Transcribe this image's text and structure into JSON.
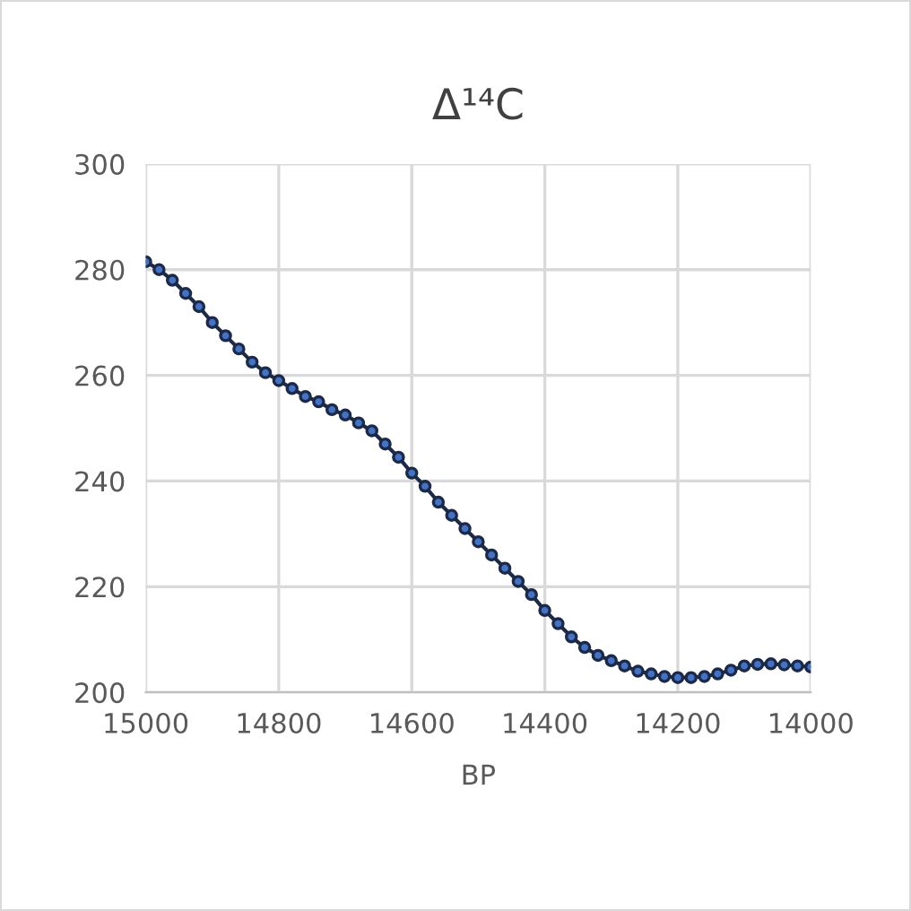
{
  "chart_data": {
    "type": "line",
    "title": "Δ¹⁴C",
    "xlabel": "BP",
    "xlim": [
      15000,
      14000
    ],
    "xticks": [
      15000,
      14800,
      14600,
      14400,
      14200,
      14000
    ],
    "ylim": [
      200,
      300
    ],
    "yticks": [
      200,
      220,
      240,
      260,
      280,
      300
    ],
    "grid": true,
    "marker": "circle",
    "line_style": "solid",
    "legend": false,
    "series": [
      {
        "color": "#1c2a48",
        "x": [
          15000,
          14980,
          14960,
          14940,
          14920,
          14900,
          14880,
          14860,
          14840,
          14820,
          14800,
          14780,
          14760,
          14740,
          14720,
          14700,
          14680,
          14660,
          14640,
          14620,
          14600,
          14580,
          14560,
          14540,
          14520,
          14500,
          14480,
          14460,
          14440,
          14420,
          14400,
          14380,
          14360,
          14340,
          14320,
          14300,
          14280,
          14260,
          14240,
          14220,
          14200,
          14180,
          14160,
          14140,
          14120,
          14100,
          14080,
          14060,
          14040,
          14020,
          14000
        ],
        "values": [
          281.5,
          280,
          278,
          275.5,
          273,
          270,
          267.5,
          265,
          262.5,
          260.5,
          259,
          257.5,
          256,
          255,
          253.5,
          252.5,
          251,
          249.5,
          247,
          244.5,
          241.5,
          239,
          236,
          233.5,
          231,
          228.5,
          226,
          223.5,
          221,
          218.5,
          215.5,
          213,
          210.5,
          208.5,
          207,
          206,
          205,
          204,
          203.5,
          203,
          202.8,
          202.8,
          203,
          203.5,
          204.2,
          205,
          205.3,
          205.4,
          205.2,
          205,
          204.8
        ]
      }
    ]
  }
}
